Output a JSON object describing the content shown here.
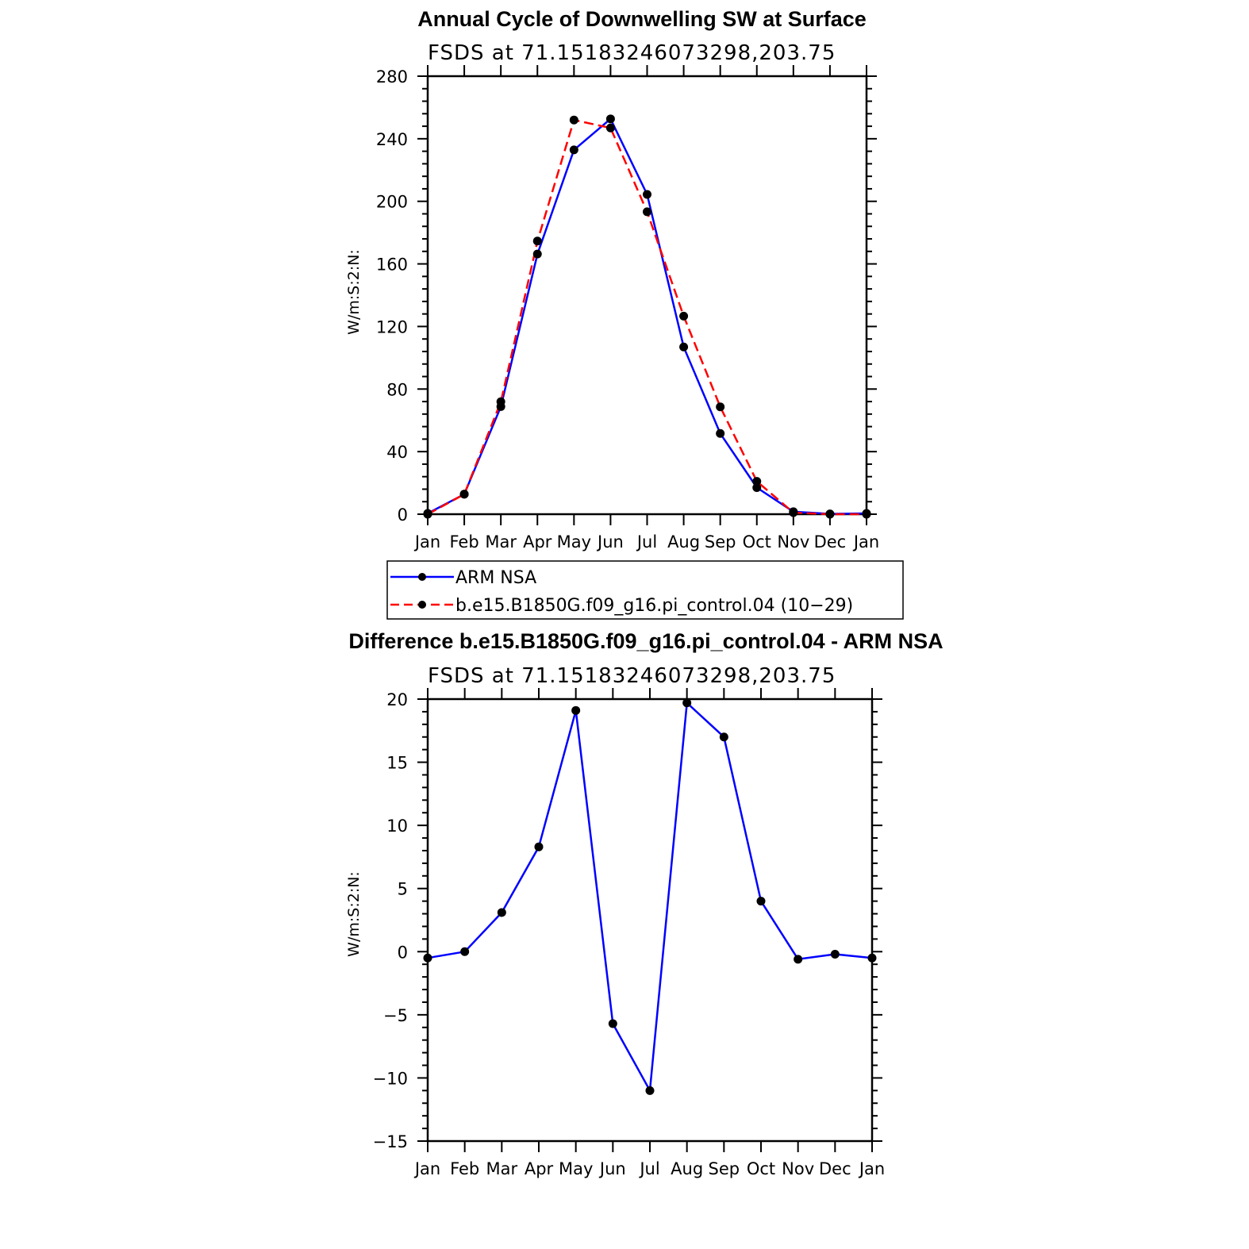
{
  "colors": {
    "series_obs": "#0000ff",
    "series_model": "#ff0000",
    "marker": "#000000",
    "axis": "#000000"
  },
  "chart_data": [
    {
      "type": "line",
      "title": "Annual Cycle of Downwelling SW at Surface",
      "subtitle": "FSDS at 71.15183246073298,203.75",
      "xlabel": "",
      "ylabel": "W/m:S:2:N:",
      "categories": [
        "Jan",
        "Feb",
        "Mar",
        "Apr",
        "May",
        "Jun",
        "Jul",
        "Aug",
        "Sep",
        "Oct",
        "Nov",
        "Dec",
        "Jan"
      ],
      "ylim": [
        0,
        280
      ],
      "yticks": [
        0,
        40,
        80,
        120,
        160,
        200,
        240,
        280
      ],
      "ytick_labels": [
        "0",
        "40",
        "80",
        "120",
        "160",
        "200",
        "240",
        "280"
      ],
      "grid": false,
      "legend": "below",
      "series": [
        {
          "name": "ARM NSA",
          "style": "solid",
          "color": "#0000ff",
          "values": [
            0.5,
            12.8,
            68.8,
            166.3,
            232.9,
            252.7,
            204.4,
            106.9,
            51.6,
            17.0,
            1.6,
            0.2,
            0.5
          ]
        },
        {
          "name": "b.e15.B1850G.f09_g16.pi_control.04 (10−29)",
          "style": "dashed",
          "color": "#ff0000",
          "values": [
            0.0,
            12.8,
            71.9,
            174.6,
            252.0,
            246.9,
            193.3,
            126.6,
            68.6,
            21.0,
            1.0,
            0.0,
            0.0
          ]
        }
      ]
    },
    {
      "type": "line",
      "title": "Difference b.e15.B1850G.f09_g16.pi_control.04 - ARM NSA",
      "subtitle": "FSDS at 71.15183246073298,203.75",
      "xlabel": "",
      "ylabel": "W/m:S:2:N:",
      "categories": [
        "Jan",
        "Feb",
        "Mar",
        "Apr",
        "May",
        "Jun",
        "Jul",
        "Aug",
        "Sep",
        "Oct",
        "Nov",
        "Dec",
        "Jan"
      ],
      "ylim": [
        -15,
        20
      ],
      "yticks": [
        -15,
        -10,
        -5,
        0,
        5,
        10,
        15,
        20
      ],
      "ytick_labels": [
        "−15",
        "−10",
        "−5",
        "0",
        "5",
        "10",
        "15",
        "20"
      ],
      "grid": false,
      "series": [
        {
          "name": "",
          "style": "solid",
          "color": "#0000ff",
          "values": [
            -0.5,
            0.0,
            3.1,
            8.3,
            19.1,
            -5.7,
            -11.0,
            19.7,
            17.0,
            4.0,
            -0.6,
            -0.2,
            -0.5
          ]
        }
      ]
    }
  ]
}
